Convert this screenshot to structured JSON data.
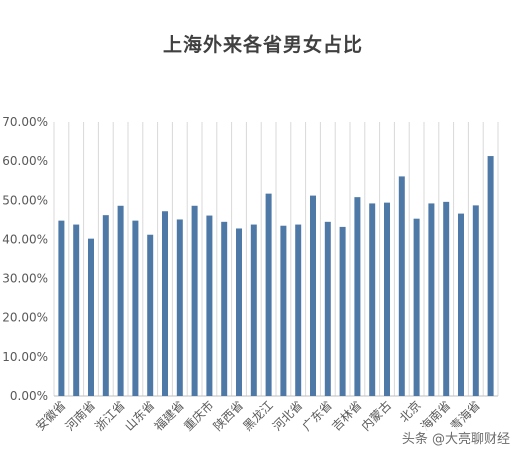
{
  "chart_data": {
    "type": "bar",
    "title": "上海外来各省男女占比",
    "xlabel": "",
    "ylabel": "",
    "ylim": [
      0,
      0.7
    ],
    "yticks": [
      "0.00%",
      "10.00%",
      "20.00%",
      "30.00%",
      "40.00%",
      "50.00%",
      "60.00%",
      "70.00%"
    ],
    "grid": "vertical",
    "legend": "none",
    "categories": [
      "安徽省",
      "",
      "河南省",
      "",
      "浙江省",
      "",
      "山东省",
      "",
      "福建省",
      "",
      "重庆市",
      "",
      "陕西省",
      "",
      "黑龙江",
      "",
      "河北省",
      "",
      "广东省",
      "",
      "吉林省",
      "",
      "内蒙古",
      "",
      "北京",
      "",
      "海南省",
      "",
      "青海省",
      ""
    ],
    "values": [
      0.448,
      0.438,
      0.402,
      0.462,
      0.486,
      0.448,
      0.412,
      0.472,
      0.451,
      0.486,
      0.461,
      0.445,
      0.428,
      0.438,
      0.517,
      0.435,
      0.438,
      0.512,
      0.445,
      0.432,
      0.508,
      0.492,
      0.494,
      0.561,
      0.453,
      0.492,
      0.496,
      0.466,
      0.487,
      0.613
    ],
    "bar_color": "#4e79a7"
  },
  "watermark": "头条 @大亮聊财经"
}
